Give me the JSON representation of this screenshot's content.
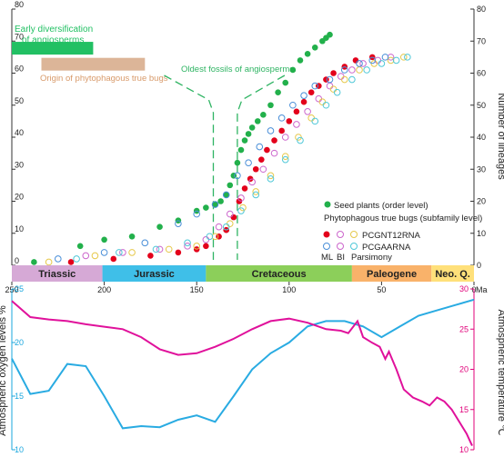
{
  "chart_data": [
    {
      "type": "scatter",
      "x_axis": {
        "ticks": [
          "250",
          "200",
          "150",
          "100",
          "50",
          "0"
        ],
        "unit": "Ma",
        "range": [
          250,
          0
        ],
        "periods": [
          {
            "name": "Triassic",
            "start": 252,
            "end": 201,
            "color": "#d6a9d6"
          },
          {
            "name": "Jurassic",
            "start": 201,
            "end": 145,
            "color": "#3fbfe8"
          },
          {
            "name": "Cretaceous",
            "start": 145,
            "end": 66,
            "color": "#8ccf5a"
          },
          {
            "name": "Paleogene",
            "start": 66,
            "end": 23,
            "color": "#f9b26a"
          },
          {
            "name": "Neo. Q.",
            "start": 23,
            "end": 0,
            "color": "#ffe07a"
          }
        ]
      },
      "y_axis_left": {
        "ticks": [
          "0",
          "10",
          "20",
          "30",
          "40",
          "50",
          "60",
          "70",
          "80"
        ],
        "range": [
          0,
          80
        ]
      },
      "y_axis_right": {
        "label": "Number of lineages",
        "ticks": [
          "0",
          "10",
          "20",
          "30",
          "40",
          "50",
          "60",
          "70",
          "80"
        ],
        "range": [
          0,
          80
        ]
      },
      "annotations": {
        "early_div": {
          "line1": "Early diversification",
          "line2": "of angiosperms",
          "start": 250,
          "end": 206,
          "y": 67.5,
          "color": "#22c063"
        },
        "origin_bugs": {
          "label": "Origin of phytophagous true bugs",
          "start": 234,
          "end": 178,
          "y": 62.5,
          "color": "#dcb598"
        },
        "oldest_fossils": {
          "label": "Oldest fossils of angiosperms",
          "lines": [
            141,
            128
          ],
          "color": "#2fb463"
        }
      },
      "legend": {
        "seed_label": "Seed plants (order level)",
        "bugs_title": "Phytophagous true bugs (subfamily level)",
        "row1": "PCGNT12RNA",
        "row2": "PCGAARNA",
        "row3_ml": "ML",
        "row3_bi": "BI",
        "row3_pars": "Parsimony",
        "colors": {
          "ml": "#e3001b",
          "bi": "#cc66cc",
          "parsimony": "#e6c84a",
          "pcgaarna_ml": "#4a8fd8",
          "pcgaarna_pars": "#4fc8d8",
          "seed": "#22b04b"
        }
      },
      "series": [
        {
          "name": "Seed plants (order level)",
          "color": "#22b04b",
          "filled": true,
          "points": [
            [
              238,
              1
            ],
            [
              213,
              6
            ],
            [
              200,
              8
            ],
            [
              185,
              9
            ],
            [
              170,
              12
            ],
            [
              160,
              14
            ],
            [
              150,
              17
            ],
            [
              145,
              18
            ],
            [
              140,
              19
            ],
            [
              137,
              20
            ],
            [
              134,
              22
            ],
            [
              132,
              25
            ],
            [
              130,
              28
            ],
            [
              128,
              32
            ],
            [
              126,
              36
            ],
            [
              124,
              39
            ],
            [
              122,
              41
            ],
            [
              120,
              43
            ],
            [
              117,
              45
            ],
            [
              114,
              47
            ],
            [
              110,
              50
            ],
            [
              106,
              54
            ],
            [
              102,
              57
            ],
            [
              98,
              61
            ],
            [
              94,
              64
            ],
            [
              90,
              66
            ],
            [
              86,
              68
            ],
            [
              82,
              70
            ],
            [
              80,
              71
            ],
            [
              78,
              72
            ]
          ]
        },
        {
          "name": "PCGNT12RNA ML",
          "color": "#e3001b",
          "filled": true,
          "points": [
            [
              218,
              1
            ],
            [
              195,
              2
            ],
            [
              175,
              3
            ],
            [
              160,
              4
            ],
            [
              150,
              5
            ],
            [
              145,
              6
            ],
            [
              138,
              9
            ],
            [
              134,
              11
            ],
            [
              130,
              15
            ],
            [
              127,
              20
            ],
            [
              124,
              24
            ],
            [
              121,
              27
            ],
            [
              118,
              30
            ],
            [
              115,
              33
            ],
            [
              112,
              36
            ],
            [
              108,
              39
            ],
            [
              104,
              42
            ],
            [
              100,
              45
            ],
            [
              96,
              48
            ],
            [
              92,
              51
            ],
            [
              88,
              54
            ],
            [
              84,
              56
            ],
            [
              80,
              58
            ],
            [
              76,
              60
            ],
            [
              70,
              62
            ],
            [
              64,
              64
            ],
            [
              55,
              65
            ]
          ]
        },
        {
          "name": "PCGNT12RNA BI",
          "color": "#cc66cc",
          "filled": false,
          "points": [
            [
              210,
              3
            ],
            [
              190,
              4
            ],
            [
              170,
              5
            ],
            [
              155,
              6
            ],
            [
              145,
              8
            ],
            [
              138,
              12
            ],
            [
              132,
              16
            ],
            [
              126,
              21
            ],
            [
              120,
              26
            ],
            [
              114,
              30
            ],
            [
              108,
              35
            ],
            [
              102,
              40
            ],
            [
              96,
              44
            ],
            [
              90,
              48
            ],
            [
              84,
              52
            ],
            [
              78,
              56
            ],
            [
              72,
              59
            ],
            [
              66,
              61
            ],
            [
              60,
              63
            ],
            [
              52,
              64
            ],
            [
              45,
              65
            ]
          ]
        },
        {
          "name": "PCGNT12RNA Parsimony",
          "color": "#e6c84a",
          "filled": false,
          "points": [
            [
              230,
              1
            ],
            [
              205,
              3
            ],
            [
              185,
              4
            ],
            [
              165,
              5
            ],
            [
              150,
              6
            ],
            [
              140,
              9
            ],
            [
              132,
              13
            ],
            [
              125,
              18
            ],
            [
              118,
              23
            ],
            [
              110,
              28
            ],
            [
              102,
              34
            ],
            [
              95,
              40
            ],
            [
              88,
              46
            ],
            [
              82,
              51
            ],
            [
              76,
              55
            ],
            [
              70,
              58
            ],
            [
              62,
              61
            ],
            [
              54,
              63
            ],
            [
              45,
              64
            ],
            [
              38,
              65
            ]
          ]
        },
        {
          "name": "PCGAARNA ML",
          "color": "#4a8fd8",
          "filled": false,
          "points": [
            [
              225,
              2
            ],
            [
              200,
              4
            ],
            [
              178,
              7
            ],
            [
              160,
              13
            ],
            [
              150,
              16
            ],
            [
              140,
              19
            ],
            [
              134,
              22
            ],
            [
              128,
              28
            ],
            [
              122,
              32
            ],
            [
              116,
              37
            ],
            [
              110,
              42
            ],
            [
              104,
              46
            ],
            [
              98,
              50
            ],
            [
              92,
              53
            ],
            [
              86,
              56
            ],
            [
              78,
              58
            ],
            [
              70,
              61
            ],
            [
              62,
              63
            ],
            [
              55,
              64
            ],
            [
              48,
              65
            ]
          ]
        },
        {
          "name": "PCGAARNA Parsimony",
          "color": "#4fc8d8",
          "filled": false,
          "points": [
            [
              215,
              2
            ],
            [
              192,
              4
            ],
            [
              172,
              5
            ],
            [
              155,
              7
            ],
            [
              143,
              9
            ],
            [
              134,
              12
            ],
            [
              126,
              17
            ],
            [
              118,
              22
            ],
            [
              110,
              27
            ],
            [
              102,
              33
            ],
            [
              94,
              39
            ],
            [
              86,
              45
            ],
            [
              80,
              50
            ],
            [
              74,
              54
            ],
            [
              66,
              58
            ],
            [
              58,
              61
            ],
            [
              50,
              63
            ],
            [
              42,
              64
            ],
            [
              36,
              65
            ]
          ]
        }
      ]
    },
    {
      "type": "line",
      "x_axis": {
        "range": [
          250,
          0
        ]
      },
      "y_axis_left": {
        "label": "Atmospheric oxygen levels %",
        "ticks": [
          "25",
          "20",
          "15",
          "10"
        ],
        "range": [
          10,
          25
        ],
        "color": "#1aa7de"
      },
      "y_axis_right": {
        "label": "Atmospheric temperature ℃",
        "ticks": [
          "30",
          "25",
          "20",
          "15",
          "10"
        ],
        "range": [
          10,
          30
        ],
        "color": "#e0007a"
      },
      "series": [
        {
          "name": "oxygen",
          "color": "#29abe2",
          "axis": "left",
          "points": [
            [
              250,
              18.5
            ],
            [
              240,
              15.2
            ],
            [
              230,
              15.5
            ],
            [
              220,
              18.0
            ],
            [
              210,
              17.8
            ],
            [
              200,
              15.0
            ],
            [
              190,
              12.0
            ],
            [
              180,
              12.2
            ],
            [
              170,
              12.1
            ],
            [
              160,
              12.8
            ],
            [
              150,
              13.2
            ],
            [
              140,
              12.6
            ],
            [
              130,
              15.0
            ],
            [
              120,
              17.5
            ],
            [
              110,
              19.0
            ],
            [
              100,
              20.0
            ],
            [
              90,
              21.5
            ],
            [
              80,
              22.0
            ],
            [
              70,
              22.0
            ],
            [
              60,
              21.5
            ],
            [
              50,
              20.5
            ],
            [
              40,
              21.5
            ],
            [
              30,
              22.5
            ],
            [
              20,
              23.0
            ],
            [
              10,
              23.5
            ],
            [
              0,
              24.0
            ]
          ]
        },
        {
          "name": "temperature",
          "color": "#e0119b",
          "axis": "right",
          "points": [
            [
              250,
              28.5
            ],
            [
              240,
              26.5
            ],
            [
              230,
              26.2
            ],
            [
              220,
              26.0
            ],
            [
              210,
              25.6
            ],
            [
              200,
              25.3
            ],
            [
              190,
              25.0
            ],
            [
              180,
              24.0
            ],
            [
              170,
              22.5
            ],
            [
              160,
              21.8
            ],
            [
              150,
              22.0
            ],
            [
              140,
              22.8
            ],
            [
              130,
              23.8
            ],
            [
              120,
              25.0
            ],
            [
              110,
              26.0
            ],
            [
              100,
              26.3
            ],
            [
              90,
              25.8
            ],
            [
              80,
              25.0
            ],
            [
              72,
              24.8
            ],
            [
              68,
              24.5
            ],
            [
              63,
              26.0
            ],
            [
              60,
              24.0
            ],
            [
              55,
              23.3
            ],
            [
              51,
              22.8
            ],
            [
              48,
              21.3
            ],
            [
              46,
              22.2
            ],
            [
              42,
              20.0
            ],
            [
              38,
              17.5
            ],
            [
              33,
              16.5
            ],
            [
              28,
              16.0
            ],
            [
              24,
              15.5
            ],
            [
              20,
              16.5
            ],
            [
              16,
              16.0
            ],
            [
              12,
              15.0
            ],
            [
              8,
              13.5
            ],
            [
              4,
              12.0
            ],
            [
              2,
              11.0
            ],
            [
              1,
              10.5
            ]
          ]
        }
      ]
    }
  ]
}
